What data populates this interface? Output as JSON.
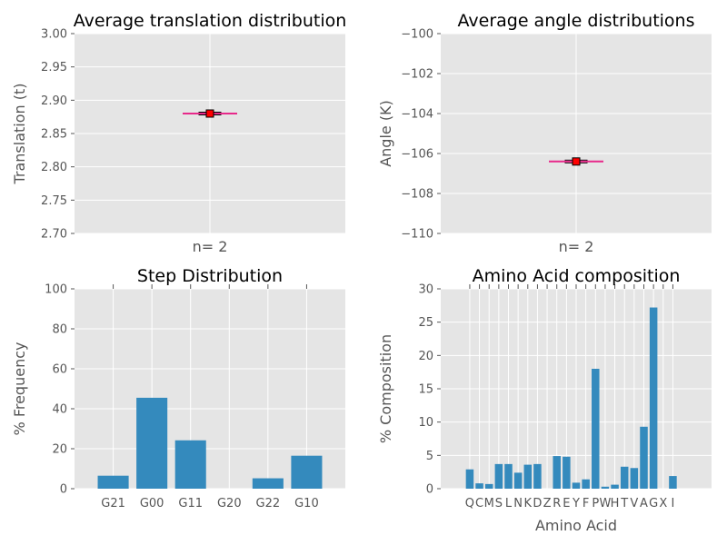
{
  "colors": {
    "panel_bg": "#e5e5e5",
    "grid": "#ffffff",
    "bar": "#348abd",
    "median": "#e7298a",
    "marker": "#ff0000",
    "box": "#000000"
  },
  "chart_data": [
    {
      "type": "box",
      "title": "Average translation distribution",
      "xlabel": "",
      "ylabel": "Translation (t)",
      "ylim": [
        2.7,
        3.0
      ],
      "yticks": [
        "2.70",
        "2.75",
        "2.80",
        "2.85",
        "2.90",
        "2.95",
        "3.00"
      ],
      "categories": [
        "n= 2"
      ],
      "values": [
        2.88
      ],
      "grid": true
    },
    {
      "type": "box",
      "title": "Average angle distributions",
      "xlabel": "",
      "ylabel": "Angle (K)",
      "ylim": [
        -110,
        -100
      ],
      "yticks": [
        "−110",
        "−108",
        "−106",
        "−104",
        "−102",
        "−100"
      ],
      "categories": [
        "n= 2"
      ],
      "values": [
        -106.4
      ],
      "grid": true
    },
    {
      "type": "bar",
      "title": "Step Distribution",
      "xlabel": "",
      "ylabel": "% Frequency",
      "ylim": [
        0,
        100
      ],
      "yticks": [
        "0",
        "20",
        "40",
        "60",
        "80",
        "100"
      ],
      "categories": [
        "G21",
        "G00",
        "G11",
        "G20",
        "G22",
        "G10"
      ],
      "values": [
        6.5,
        45.5,
        24.2,
        0,
        5.2,
        16.5
      ],
      "grid": true
    },
    {
      "type": "bar",
      "title": "Amino Acid composition",
      "xlabel": "Amino Acid",
      "ylabel": "% Composition",
      "ylim": [
        0,
        30
      ],
      "yticks": [
        "0",
        "5",
        "10",
        "15",
        "20",
        "25",
        "30"
      ],
      "xlim": [
        -3,
        25
      ],
      "categories": [
        "Q",
        "C",
        "M",
        "S",
        "L",
        "N",
        "K",
        "D",
        "Z",
        "R",
        "E",
        "Y",
        "F",
        "P",
        "W",
        "H",
        "T",
        "V",
        "A",
        "G",
        "X",
        "I"
      ],
      "values": [
        2.9,
        0.8,
        0.7,
        3.7,
        3.7,
        2.4,
        3.6,
        3.7,
        0,
        4.9,
        4.8,
        0.9,
        1.4,
        18.0,
        0.3,
        0.6,
        3.3,
        3.1,
        9.3,
        27.2,
        0,
        1.9
      ],
      "grid": true
    }
  ]
}
